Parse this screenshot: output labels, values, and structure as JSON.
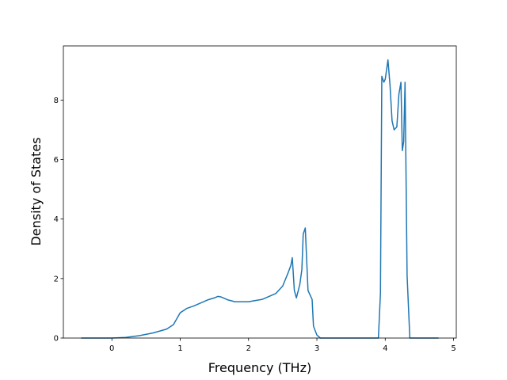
{
  "chart_data": {
    "type": "line",
    "xlabel": "Frequency (THz)",
    "ylabel": "Density of States",
    "x": [
      -0.45,
      0,
      0.2,
      0.4,
      0.6,
      0.8,
      0.9,
      1.0,
      1.1,
      1.2,
      1.3,
      1.4,
      1.5,
      1.55,
      1.6,
      1.7,
      1.8,
      2.0,
      2.2,
      2.4,
      2.5,
      2.58,
      2.62,
      2.64,
      2.67,
      2.7,
      2.75,
      2.78,
      2.8,
      2.83,
      2.87,
      2.93,
      2.95,
      3.0,
      3.05,
      3.5,
      3.9,
      3.93,
      3.95,
      3.98,
      4.0,
      4.04,
      4.07,
      4.1,
      4.13,
      4.17,
      4.2,
      4.23,
      4.25,
      4.27,
      4.29,
      4.32,
      4.36,
      4.4,
      4.78
    ],
    "series": [
      {
        "color": "#1f77b4",
        "values": [
          0,
          0,
          0.02,
          0.08,
          0.17,
          0.3,
          0.45,
          0.85,
          1.0,
          1.08,
          1.18,
          1.28,
          1.35,
          1.4,
          1.38,
          1.28,
          1.22,
          1.22,
          1.3,
          1.5,
          1.75,
          2.2,
          2.45,
          2.7,
          1.6,
          1.35,
          1.8,
          2.3,
          3.5,
          3.7,
          1.6,
          1.3,
          0.4,
          0.1,
          0,
          0,
          0,
          1.5,
          8.8,
          8.6,
          8.7,
          9.35,
          8.5,
          7.3,
          7.0,
          7.1,
          8.2,
          8.6,
          6.3,
          6.6,
          8.6,
          2.1,
          0,
          0,
          0
        ]
      }
    ],
    "xlim": [
      -0.71,
      5.04
    ],
    "ylim": [
      0,
      9.82
    ],
    "xticks": [
      0,
      1,
      2,
      3,
      4,
      5
    ],
    "yticks": [
      0,
      2,
      4,
      6,
      8
    ]
  }
}
